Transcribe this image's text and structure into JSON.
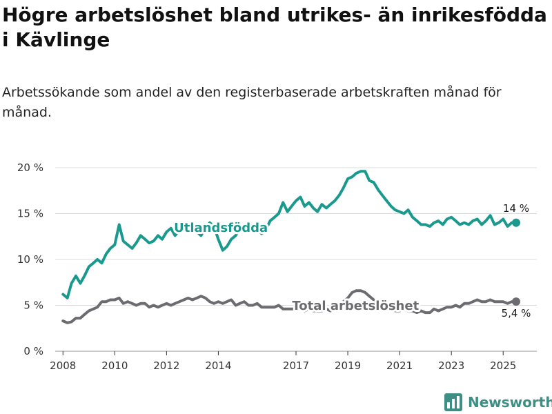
{
  "header": {
    "title": "Högre arbetslöshet bland utrikes- än inrikesfödda i Kävlinge",
    "subtitle": "Arbetssökande som andel av den registerbaserade arbetskraften månad för månad."
  },
  "brand": {
    "name": "Newsworthy",
    "logo_icon": "bar-chart-logo-icon",
    "color": "#3d8f86"
  },
  "chart_data": {
    "type": "line",
    "xlim": [
      2007.7,
      2026.3
    ],
    "ylim": [
      0,
      20
    ],
    "x_ticks": [
      2008,
      2010,
      2012,
      2014,
      2017,
      2019,
      2021,
      2023,
      2025
    ],
    "x_tick_labels": [
      "2008",
      "2010",
      "2012",
      "2014",
      "2017",
      "2019",
      "2021",
      "2023",
      "2025"
    ],
    "y_ticks": [
      0,
      5,
      10,
      15,
      20
    ],
    "y_tick_labels": [
      "0 %",
      "5 %",
      "10 %",
      "15 %",
      "20 %"
    ],
    "grid": "horizontal",
    "series": [
      {
        "name": "Utlandsfödda",
        "color": "#1a9a8e",
        "end_label": "14 %",
        "points": [
          [
            2008.0,
            6.2
          ],
          [
            2008.17,
            5.8
          ],
          [
            2008.33,
            7.4
          ],
          [
            2008.5,
            8.2
          ],
          [
            2008.67,
            7.4
          ],
          [
            2008.83,
            8.2
          ],
          [
            2009.0,
            9.2
          ],
          [
            2009.17,
            9.6
          ],
          [
            2009.33,
            10.0
          ],
          [
            2009.5,
            9.6
          ],
          [
            2009.67,
            10.6
          ],
          [
            2009.83,
            11.2
          ],
          [
            2010.0,
            11.6
          ],
          [
            2010.17,
            13.8
          ],
          [
            2010.33,
            12.0
          ],
          [
            2010.5,
            11.6
          ],
          [
            2010.67,
            11.2
          ],
          [
            2010.83,
            11.8
          ],
          [
            2011.0,
            12.6
          ],
          [
            2011.17,
            12.2
          ],
          [
            2011.33,
            11.8
          ],
          [
            2011.5,
            12.0
          ],
          [
            2011.67,
            12.6
          ],
          [
            2011.83,
            12.2
          ],
          [
            2012.0,
            13.0
          ],
          [
            2012.17,
            13.4
          ],
          [
            2012.33,
            12.6
          ],
          [
            2012.5,
            13.2
          ],
          [
            2012.67,
            13.6
          ],
          [
            2012.83,
            13.2
          ],
          [
            2013.0,
            13.6
          ],
          [
            2013.17,
            13.0
          ],
          [
            2013.33,
            12.6
          ],
          [
            2013.5,
            13.4
          ],
          [
            2013.67,
            14.0
          ],
          [
            2013.83,
            13.6
          ],
          [
            2014.0,
            12.2
          ],
          [
            2014.17,
            11.0
          ],
          [
            2014.33,
            11.4
          ],
          [
            2014.5,
            12.2
          ],
          [
            2014.67,
            12.6
          ],
          [
            2014.83,
            13.4
          ],
          [
            2015.0,
            13.8
          ],
          [
            2015.17,
            13.2
          ],
          [
            2015.33,
            13.0
          ],
          [
            2015.5,
            13.4
          ],
          [
            2015.67,
            12.8
          ],
          [
            2015.83,
            13.2
          ],
          [
            2016.0,
            14.2
          ],
          [
            2016.17,
            14.6
          ],
          [
            2016.33,
            15.0
          ],
          [
            2016.5,
            16.2
          ],
          [
            2016.67,
            15.2
          ],
          [
            2016.83,
            15.8
          ],
          [
            2017.0,
            16.4
          ],
          [
            2017.17,
            16.8
          ],
          [
            2017.33,
            15.8
          ],
          [
            2017.5,
            16.2
          ],
          [
            2017.67,
            15.6
          ],
          [
            2017.83,
            15.2
          ],
          [
            2018.0,
            16.0
          ],
          [
            2018.17,
            15.6
          ],
          [
            2018.33,
            16.0
          ],
          [
            2018.5,
            16.4
          ],
          [
            2018.67,
            17.0
          ],
          [
            2018.83,
            17.8
          ],
          [
            2019.0,
            18.8
          ],
          [
            2019.17,
            19.0
          ],
          [
            2019.33,
            19.4
          ],
          [
            2019.5,
            19.6
          ],
          [
            2019.67,
            19.6
          ],
          [
            2019.83,
            18.6
          ],
          [
            2020.0,
            18.4
          ],
          [
            2020.17,
            17.6
          ],
          [
            2020.33,
            17.0
          ],
          [
            2020.5,
            16.4
          ],
          [
            2020.67,
            15.8
          ],
          [
            2020.83,
            15.4
          ],
          [
            2021.0,
            15.2
          ],
          [
            2021.17,
            15.0
          ],
          [
            2021.33,
            15.4
          ],
          [
            2021.5,
            14.6
          ],
          [
            2021.67,
            14.2
          ],
          [
            2021.83,
            13.8
          ],
          [
            2022.0,
            13.8
          ],
          [
            2022.17,
            13.6
          ],
          [
            2022.33,
            14.0
          ],
          [
            2022.5,
            14.2
          ],
          [
            2022.67,
            13.8
          ],
          [
            2022.83,
            14.4
          ],
          [
            2023.0,
            14.6
          ],
          [
            2023.17,
            14.2
          ],
          [
            2023.33,
            13.8
          ],
          [
            2023.5,
            14.0
          ],
          [
            2023.67,
            13.8
          ],
          [
            2023.83,
            14.2
          ],
          [
            2024.0,
            14.4
          ],
          [
            2024.17,
            13.8
          ],
          [
            2024.33,
            14.2
          ],
          [
            2024.5,
            14.8
          ],
          [
            2024.67,
            13.8
          ],
          [
            2024.83,
            14.0
          ],
          [
            2025.0,
            14.4
          ],
          [
            2025.17,
            13.6
          ],
          [
            2025.33,
            14.0
          ],
          [
            2025.5,
            14.0
          ]
        ]
      },
      {
        "name": "Total arbetslöshet",
        "color": "#6c6c70",
        "end_label": "5,4 %",
        "points": [
          [
            2008.0,
            3.3
          ],
          [
            2008.17,
            3.1
          ],
          [
            2008.33,
            3.2
          ],
          [
            2008.5,
            3.6
          ],
          [
            2008.67,
            3.6
          ],
          [
            2008.83,
            4.0
          ],
          [
            2009.0,
            4.4
          ],
          [
            2009.17,
            4.6
          ],
          [
            2009.33,
            4.8
          ],
          [
            2009.5,
            5.4
          ],
          [
            2009.67,
            5.4
          ],
          [
            2009.83,
            5.6
          ],
          [
            2010.0,
            5.6
          ],
          [
            2010.17,
            5.8
          ],
          [
            2010.33,
            5.2
          ],
          [
            2010.5,
            5.4
          ],
          [
            2010.67,
            5.2
          ],
          [
            2010.83,
            5.0
          ],
          [
            2011.0,
            5.2
          ],
          [
            2011.17,
            5.2
          ],
          [
            2011.33,
            4.8
          ],
          [
            2011.5,
            5.0
          ],
          [
            2011.67,
            4.8
          ],
          [
            2011.83,
            5.0
          ],
          [
            2012.0,
            5.2
          ],
          [
            2012.17,
            5.0
          ],
          [
            2012.33,
            5.2
          ],
          [
            2012.5,
            5.4
          ],
          [
            2012.67,
            5.6
          ],
          [
            2012.83,
            5.8
          ],
          [
            2013.0,
            5.6
          ],
          [
            2013.17,
            5.8
          ],
          [
            2013.33,
            6.0
          ],
          [
            2013.5,
            5.8
          ],
          [
            2013.67,
            5.4
          ],
          [
            2013.83,
            5.2
          ],
          [
            2014.0,
            5.4
          ],
          [
            2014.17,
            5.2
          ],
          [
            2014.33,
            5.4
          ],
          [
            2014.5,
            5.6
          ],
          [
            2014.67,
            5.0
          ],
          [
            2014.83,
            5.2
          ],
          [
            2015.0,
            5.4
          ],
          [
            2015.17,
            5.0
          ],
          [
            2015.33,
            5.0
          ],
          [
            2015.5,
            5.2
          ],
          [
            2015.67,
            4.8
          ],
          [
            2015.83,
            4.8
          ],
          [
            2016.0,
            4.8
          ],
          [
            2016.17,
            4.8
          ],
          [
            2016.33,
            5.0
          ],
          [
            2016.5,
            4.6
          ],
          [
            2016.67,
            4.6
          ],
          [
            2016.83,
            4.6
          ],
          [
            2017.0,
            4.6
          ],
          [
            2017.17,
            4.6
          ],
          [
            2017.33,
            4.4
          ],
          [
            2017.5,
            4.6
          ],
          [
            2017.67,
            4.4
          ],
          [
            2017.83,
            4.4
          ],
          [
            2018.0,
            4.4
          ],
          [
            2018.17,
            4.6
          ],
          [
            2018.33,
            4.4
          ],
          [
            2018.5,
            4.6
          ],
          [
            2018.67,
            5.0
          ],
          [
            2018.83,
            5.4
          ],
          [
            2019.0,
            5.8
          ],
          [
            2019.17,
            6.4
          ],
          [
            2019.33,
            6.6
          ],
          [
            2019.5,
            6.6
          ],
          [
            2019.67,
            6.4
          ],
          [
            2019.83,
            6.0
          ],
          [
            2020.0,
            5.6
          ],
          [
            2020.17,
            5.2
          ],
          [
            2020.33,
            4.8
          ],
          [
            2020.5,
            4.6
          ],
          [
            2020.67,
            4.6
          ],
          [
            2020.83,
            4.4
          ],
          [
            2021.0,
            4.4
          ],
          [
            2021.17,
            4.6
          ],
          [
            2021.33,
            4.4
          ],
          [
            2021.5,
            4.4
          ],
          [
            2021.67,
            4.2
          ],
          [
            2021.83,
            4.4
          ],
          [
            2022.0,
            4.2
          ],
          [
            2022.17,
            4.2
          ],
          [
            2022.33,
            4.6
          ],
          [
            2022.5,
            4.4
          ],
          [
            2022.67,
            4.6
          ],
          [
            2022.83,
            4.8
          ],
          [
            2023.0,
            4.8
          ],
          [
            2023.17,
            5.0
          ],
          [
            2023.33,
            4.8
          ],
          [
            2023.5,
            5.2
          ],
          [
            2023.67,
            5.2
          ],
          [
            2023.83,
            5.4
          ],
          [
            2024.0,
            5.6
          ],
          [
            2024.17,
            5.4
          ],
          [
            2024.33,
            5.4
          ],
          [
            2024.5,
            5.6
          ],
          [
            2024.67,
            5.4
          ],
          [
            2024.83,
            5.4
          ],
          [
            2025.0,
            5.4
          ],
          [
            2025.17,
            5.2
          ],
          [
            2025.33,
            5.4
          ],
          [
            2025.5,
            5.4
          ]
        ]
      }
    ]
  }
}
